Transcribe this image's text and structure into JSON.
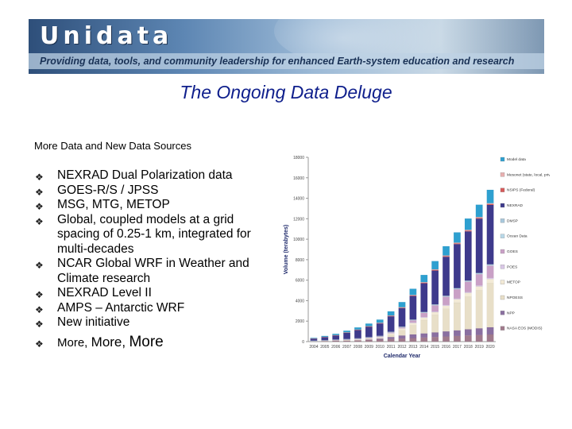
{
  "banner": {
    "logo": "Unidata",
    "tagline": "Providing data, tools, and community leadership for enhanced Earth-system education and research"
  },
  "slide": {
    "title": "The Ongoing Data Deluge",
    "subtitle": "More Data and New Data Sources",
    "bullet_glyph": "❖",
    "bullets": [
      "NEXRAD Dual Polarization data",
      "GOES-R/S / JPSS",
      "MSG, MTG, METOP",
      "Global, coupled models at a grid spacing of 0.25-1 km, integrated for multi-decades",
      "NCAR Global WRF in Weather and Climate research",
      "NEXRAD Level II",
      "AMPS – Antarctic WRF",
      "New initiative"
    ],
    "more": [
      "More,",
      "More,",
      "More"
    ]
  },
  "chart_data": {
    "type": "bar",
    "stacked": true,
    "xlabel": "Calendar Year",
    "ylabel": "Volume (terabytes)",
    "ylim": [
      0,
      18000
    ],
    "yticks": [
      "0",
      "2000",
      "4000",
      "6000",
      "8000",
      "10000",
      "12000",
      "14000",
      "16000",
      "18000"
    ],
    "categories": [
      "2004",
      "2005",
      "2006",
      "2007",
      "2008",
      "2009",
      "2010",
      "2011",
      "2012",
      "2013",
      "2014",
      "2015",
      "2016",
      "2017",
      "2018",
      "2019",
      "2020"
    ],
    "legend_position": "right",
    "series": [
      {
        "name": "NASA EOS (MODIS)",
        "color": "#a07a8c",
        "values": [
          40,
          60,
          80,
          100,
          130,
          160,
          200,
          250,
          300,
          350,
          400,
          450,
          500,
          550,
          600,
          650,
          700
        ]
      },
      {
        "name": "NPP",
        "color": "#8a6fa0",
        "values": [
          0,
          0,
          0,
          0,
          0,
          50,
          100,
          200,
          300,
          350,
          400,
          450,
          500,
          550,
          600,
          650,
          700
        ]
      },
      {
        "name": "NPOESS",
        "color": "#e8dfc8",
        "values": [
          0,
          0,
          0,
          0,
          0,
          0,
          0,
          200,
          500,
          900,
          1300,
          1700,
          2200,
          2700,
          3200,
          3700,
          4300
        ]
      },
      {
        "name": "METOP",
        "color": "#f3ead6",
        "values": [
          10,
          20,
          40,
          60,
          80,
          100,
          120,
          150,
          180,
          210,
          240,
          270,
          300,
          330,
          360,
          390,
          420
        ]
      },
      {
        "name": "POES",
        "color": "#d9c7e6",
        "values": [
          20,
          25,
          30,
          35,
          40,
          45,
          50,
          55,
          60,
          65,
          70,
          75,
          80,
          85,
          90,
          95,
          100
        ]
      },
      {
        "name": "GOES",
        "color": "#c9a0c6",
        "values": [
          15,
          20,
          25,
          30,
          35,
          40,
          45,
          50,
          55,
          200,
          400,
          600,
          800,
          900,
          1000,
          1100,
          1200
        ]
      },
      {
        "name": "Ocean Data",
        "color": "#b8d8e8",
        "values": [
          5,
          10,
          15,
          20,
          25,
          30,
          35,
          40,
          45,
          50,
          55,
          60,
          65,
          70,
          75,
          80,
          85
        ]
      },
      {
        "name": "DMSP",
        "color": "#a8c8dc",
        "values": [
          10,
          12,
          14,
          16,
          18,
          20,
          22,
          24,
          26,
          28,
          30,
          32,
          34,
          36,
          38,
          40,
          42
        ]
      },
      {
        "name": "NEXRAD",
        "color": "#3e3a8c",
        "values": [
          200,
          300,
          400,
          600,
          800,
          1000,
          1200,
          1500,
          1800,
          2300,
          2800,
          3300,
          3800,
          4300,
          4800,
          5300,
          5800
        ]
      },
      {
        "name": "NSIPS (Federal)",
        "color": "#d65a5a",
        "values": [
          10,
          15,
          20,
          25,
          30,
          35,
          40,
          45,
          50,
          55,
          60,
          65,
          70,
          75,
          80,
          85,
          90
        ]
      },
      {
        "name": "Mesonet (state, local, private)",
        "color": "#e8b0b0",
        "values": [
          5,
          10,
          15,
          20,
          25,
          30,
          35,
          40,
          45,
          50,
          55,
          60,
          65,
          70,
          75,
          80,
          85
        ]
      },
      {
        "name": "Model data",
        "color": "#2ea0d0",
        "values": [
          50,
          80,
          120,
          160,
          200,
          250,
          300,
          400,
          500,
          600,
          700,
          800,
          900,
          1000,
          1100,
          1200,
          1300
        ]
      }
    ]
  }
}
